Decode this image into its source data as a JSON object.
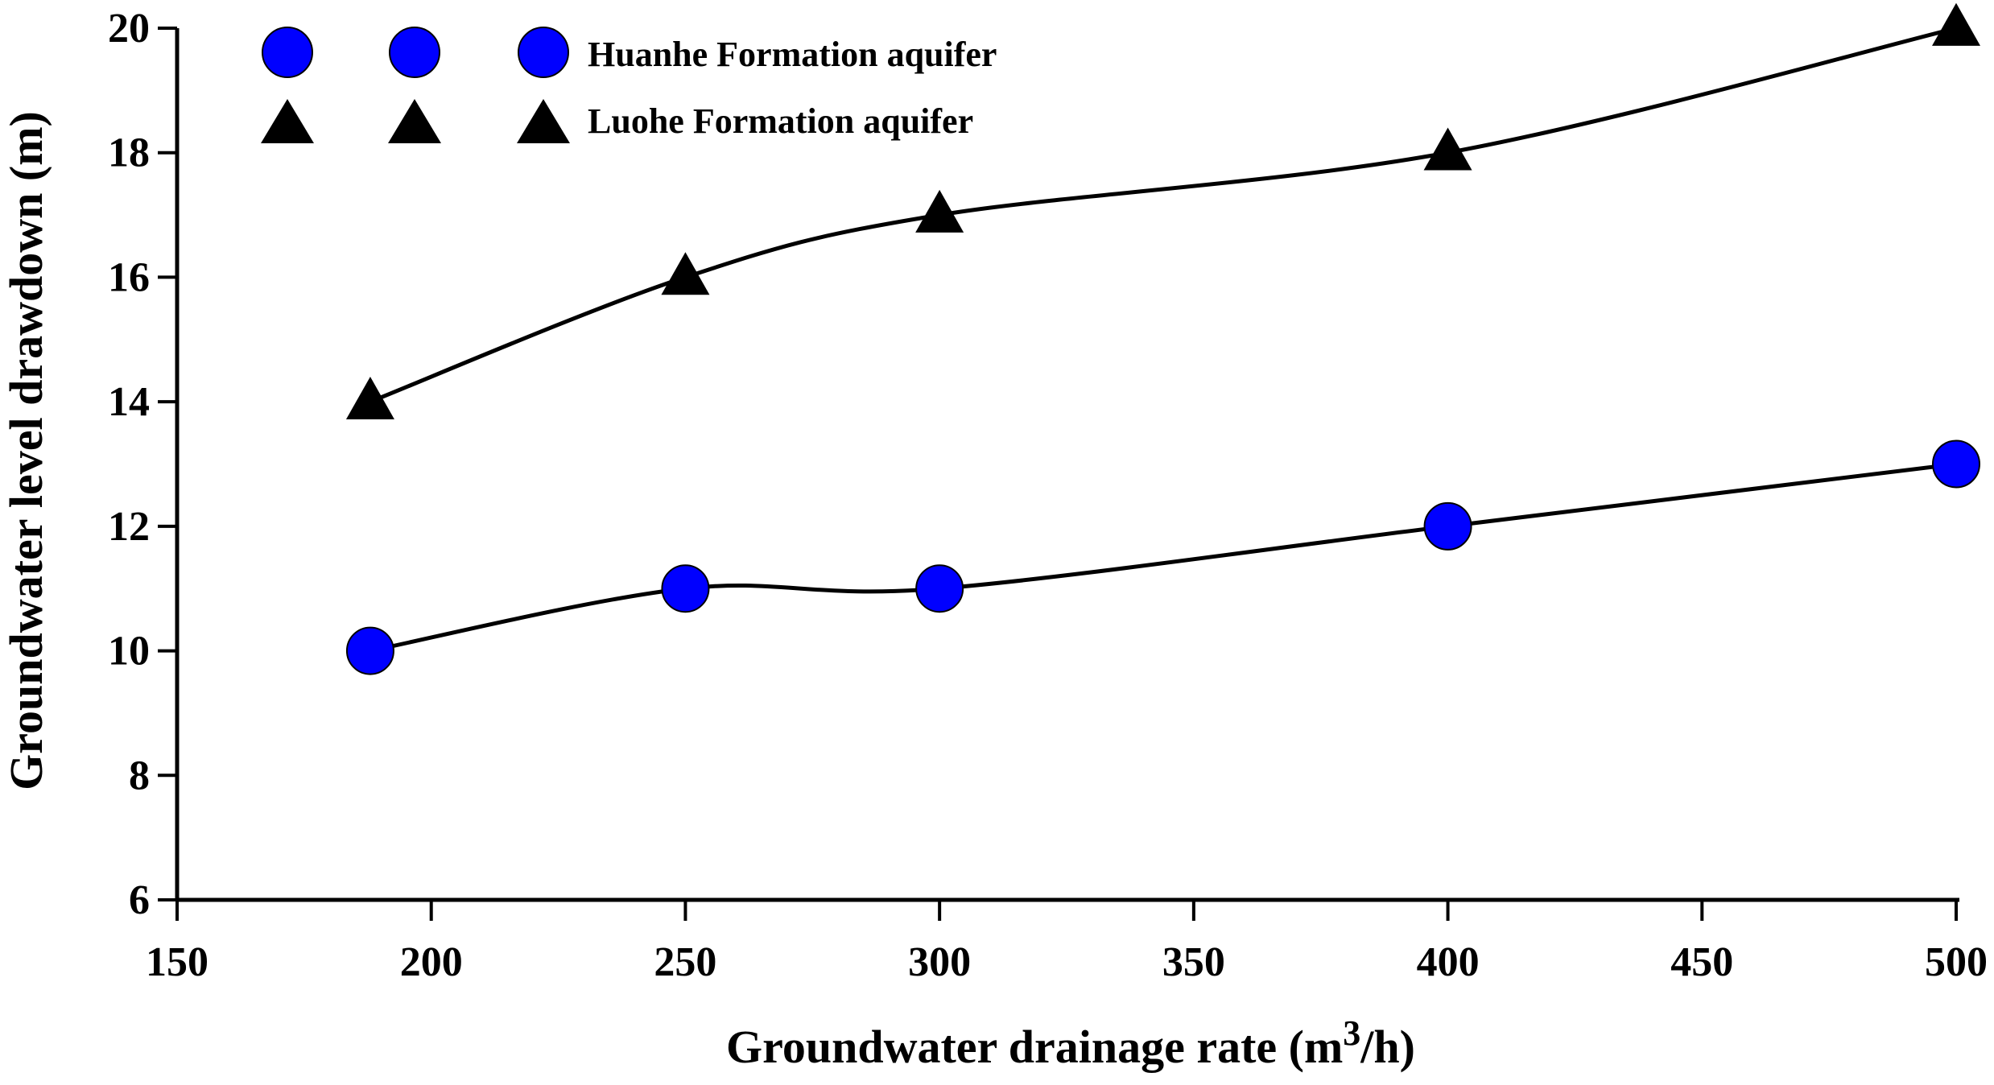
{
  "chart_data": {
    "type": "line",
    "title": "",
    "xlabel": "Groundwater drainage rate (m",
    "xlabel_sup": "3",
    "xlabel_suffix": "/h)",
    "ylabel": "Groundwater level drawdown (m)",
    "xlim": [
      150,
      500
    ],
    "ylim": [
      6,
      20
    ],
    "xticks": [
      150,
      200,
      250,
      300,
      350,
      400,
      450,
      500
    ],
    "yticks": [
      6,
      8,
      10,
      12,
      14,
      16,
      18,
      20
    ],
    "x": [
      188,
      250,
      300,
      400,
      500
    ],
    "series": [
      {
        "name": "Huanhe Formation aquifer",
        "marker": "circle",
        "color": "#0000ff",
        "values": [
          10,
          11,
          11,
          12,
          13
        ]
      },
      {
        "name": "Luohe Formation aquifer",
        "marker": "triangle",
        "color": "#000000",
        "values": [
          14,
          16,
          17,
          18,
          20
        ]
      }
    ],
    "grid": false,
    "legend_position": "top-left",
    "line_color": "#000000"
  }
}
